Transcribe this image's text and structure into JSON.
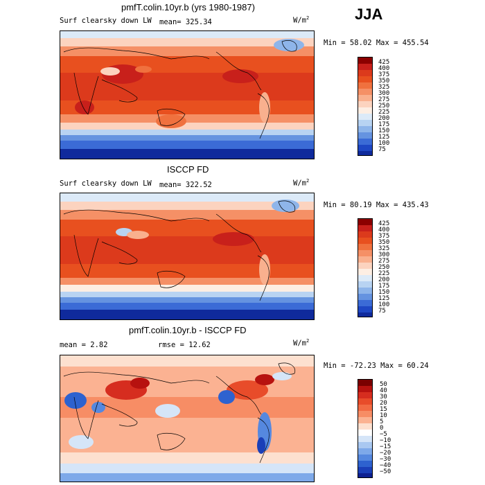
{
  "season": "JJA",
  "panels": [
    {
      "title": "pmfT.colin.10yr.b (yrs 1980-1987)",
      "field": "Surf clearsky down LW",
      "stat1": "mean= 325.34",
      "stat2": "",
      "units": "W/m",
      "units_exp": "2",
      "range": "Min =  58.02 Max = 455.54",
      "levels": [
        "425",
        "400",
        "375",
        "350",
        "325",
        "300",
        "275",
        "250",
        "225",
        "200",
        "175",
        "150",
        "125",
        "100",
        "75"
      ]
    },
    {
      "title": "ISCCP FD",
      "field": "Surf clearsky down LW",
      "stat1": "mean= 322.52",
      "stat2": "",
      "units": "W/m",
      "units_exp": "2",
      "range": "Min =  80.19 Max = 435.43",
      "levels": [
        "425",
        "400",
        "375",
        "350",
        "325",
        "300",
        "275",
        "250",
        "225",
        "200",
        "175",
        "150",
        "125",
        "100",
        "75"
      ]
    },
    {
      "title": "pmfT.colin.10yr.b - ISCCP FD",
      "field": "",
      "stat1": "mean =   2.82",
      "stat2": "rmse =  12.62",
      "units": "W/m",
      "units_exp": "2",
      "range": "Min = -72.23 Max =  60.24",
      "levels": [
        "50",
        "40",
        "30",
        "20",
        "15",
        "10",
        "5",
        "0",
        "−5",
        "−10",
        "−15",
        "−20",
        "−30",
        "−40",
        "−50"
      ]
    }
  ],
  "colors": {
    "abs_scale": [
      "#8b0000",
      "#c8201b",
      "#dc3a1c",
      "#e8501f",
      "#f0713e",
      "#f59066",
      "#f9b08e",
      "#fcd3bf",
      "#fdeee3",
      "#dceaf8",
      "#b8d3f2",
      "#8eb5ea",
      "#6593e0",
      "#3b6bd6",
      "#1e47c4",
      "#0f2a9c"
    ],
    "diff_scale": [
      "#7a0000",
      "#b7120f",
      "#d62d1f",
      "#e84c2a",
      "#f26b44",
      "#f78d65",
      "#fbb292",
      "#fde0cf",
      "#ffffff",
      "#d5e5f8",
      "#a9c8f1",
      "#7ea9e9",
      "#5588df",
      "#2e62cf",
      "#1a3fb8",
      "#0d2090"
    ]
  }
}
